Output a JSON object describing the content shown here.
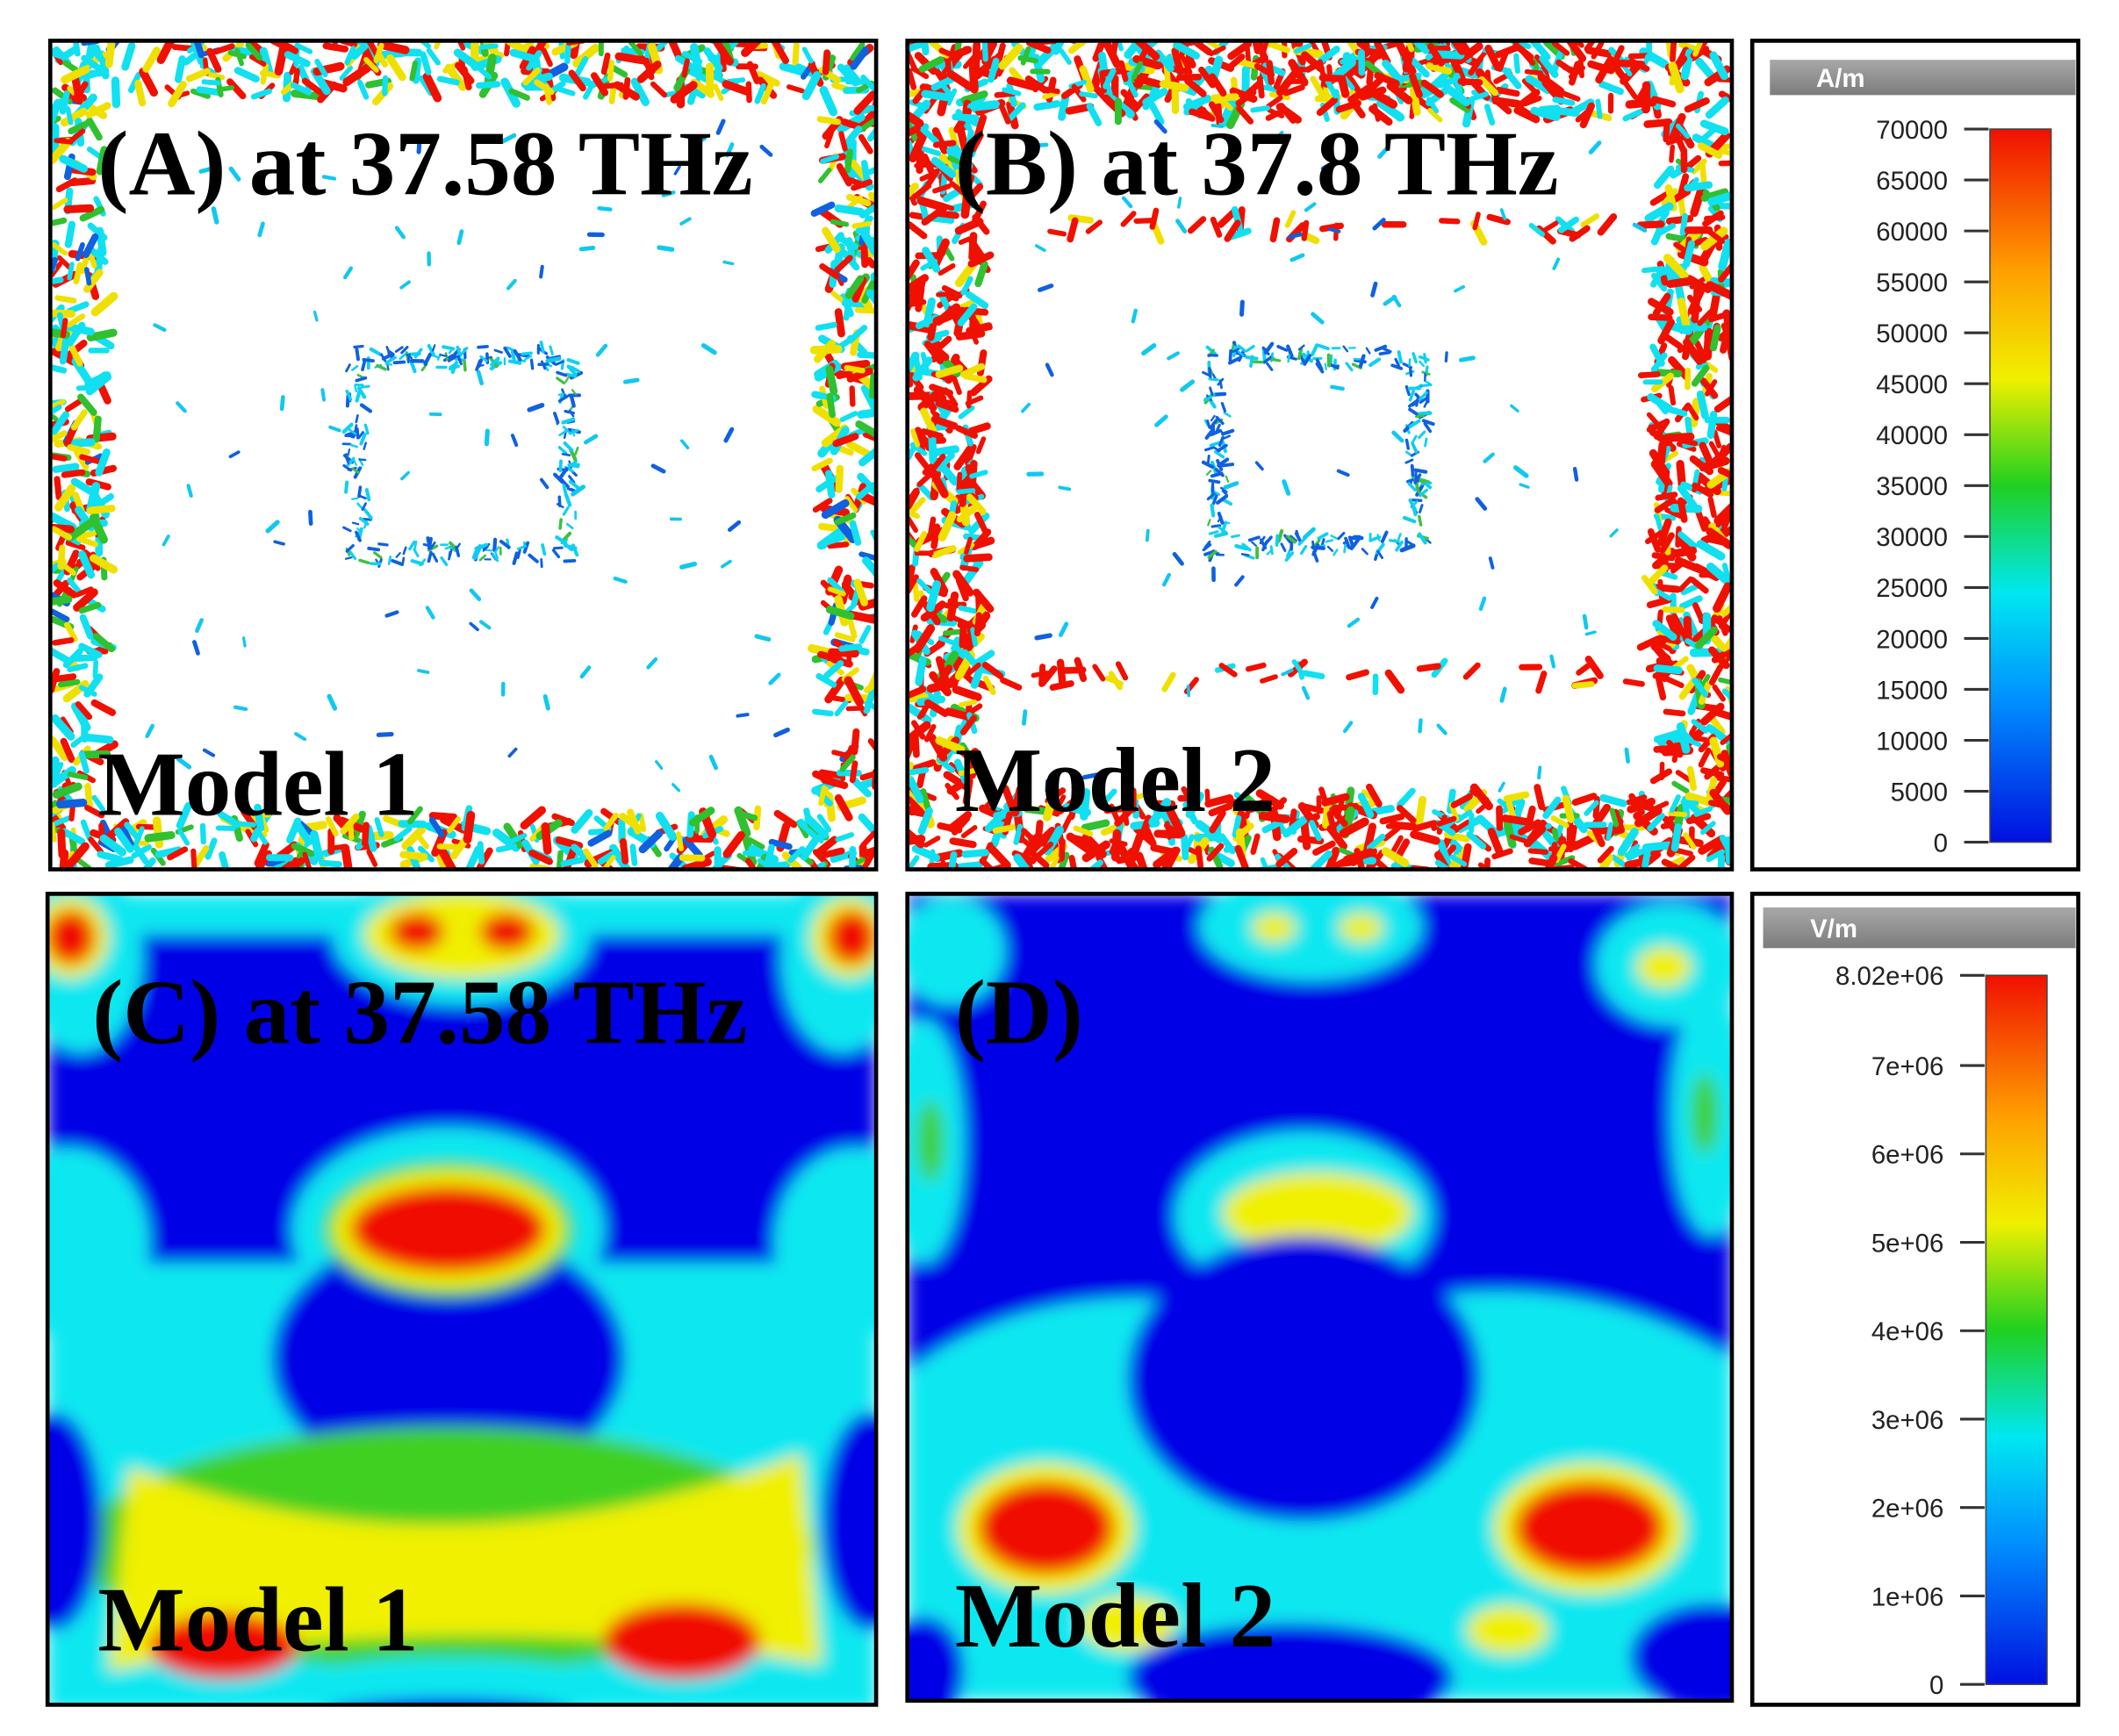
{
  "panels": [
    {
      "label": "(A) at 37.58 THz",
      "model": "Model 1"
    },
    {
      "label": "(B) at 37.8 THz",
      "model": "Model 2"
    },
    {
      "label": "(C) at 37.58 THz",
      "model": "Model 1"
    },
    {
      "label": "(D)",
      "model": "Model 2"
    }
  ],
  "colorbars": [
    {
      "unit": "A/m",
      "ticks": [
        "70000",
        "65000",
        "60000",
        "55000",
        "50000",
        "45000",
        "40000",
        "35000",
        "30000",
        "25000",
        "20000",
        "15000",
        "10000",
        "5000",
        "0"
      ]
    },
    {
      "unit": "V/m",
      "ticks": [
        "8.02e+06",
        "7e+06",
        "6e+06",
        "5e+06",
        "4e+06",
        "3e+06",
        "2e+06",
        "1e+06",
        "0"
      ]
    }
  ]
}
